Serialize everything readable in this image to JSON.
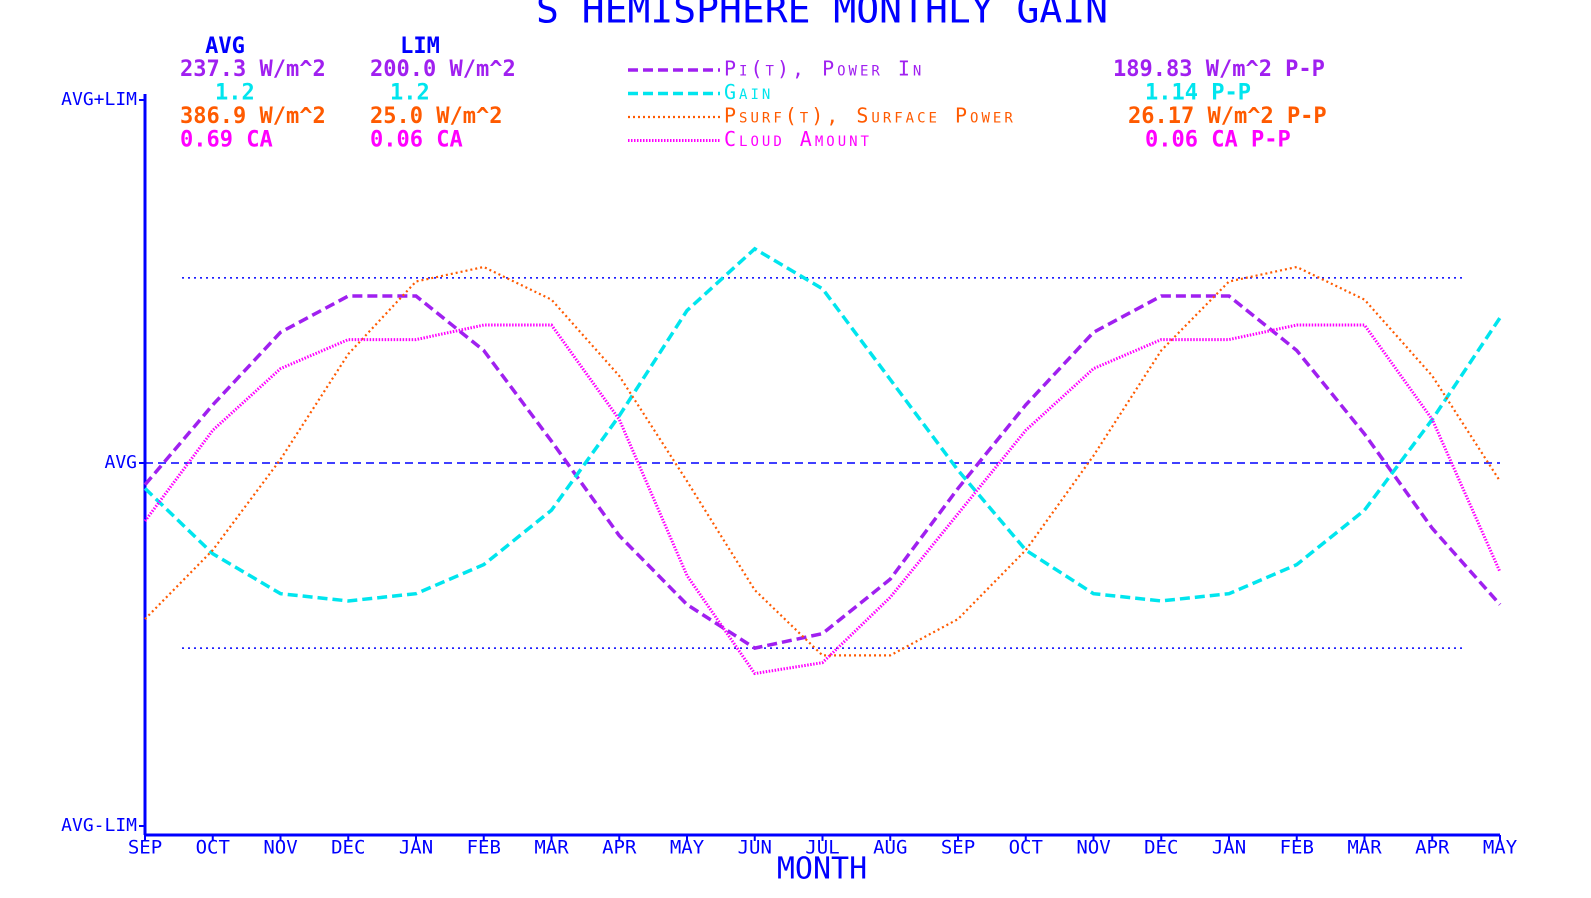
{
  "chart_data": {
    "type": "line",
    "title": "S HEMISPHERE MONTHLY GAIN",
    "x_label": "MONTH",
    "avg_heading": "AVG",
    "lim_heading": "LIM",
    "categories": [
      "SEP",
      "OCT",
      "NOV",
      "DEC",
      "JAN",
      "FEB",
      "MAR",
      "APR",
      "MAY",
      "JUN",
      "JUL",
      "AUG",
      "SEP",
      "OCT",
      "NOV",
      "DEC",
      "JAN",
      "FEB",
      "MAR",
      "APR",
      "MAY"
    ],
    "ylim": [
      -1,
      1
    ],
    "yticks": [
      {
        "value": 1,
        "label": "AVG+LIM"
      },
      {
        "value": 0,
        "label": "AVG"
      },
      {
        "value": -1,
        "label": "AVG-LIM"
      }
    ],
    "reference_lines": [
      {
        "value": 0.51,
        "style": "dotted"
      },
      {
        "value": 0,
        "style": "dashed"
      },
      {
        "value": -0.51,
        "style": "dotted"
      }
    ],
    "axis_color": "#0000ff",
    "series": [
      {
        "name": "Pi(t), Power In",
        "color": "#a020f0",
        "dash": "dashed",
        "avg_label": "237.3 W/m^2",
        "lim_label": "200.0 W/m^2",
        "pp_label": "189.83 W/m^2 P-P",
        "values": [
          -0.06,
          0.16,
          0.36,
          0.46,
          0.46,
          0.31,
          0.06,
          -0.2,
          -0.39,
          -0.51,
          -0.47,
          -0.32,
          -0.07,
          0.16,
          0.36,
          0.46,
          0.46,
          0.31,
          0.08,
          -0.18,
          -0.39
        ]
      },
      {
        "name": "Gain",
        "color": "#00e5ee",
        "dash": "dashed",
        "avg_label": "1.2",
        "lim_label": "1.2",
        "pp_label": "1.14  P-P",
        "values": [
          -0.07,
          -0.25,
          -0.36,
          -0.38,
          -0.36,
          -0.28,
          -0.13,
          0.13,
          0.42,
          0.59,
          0.48,
          0.23,
          -0.02,
          -0.24,
          -0.36,
          -0.38,
          -0.36,
          -0.28,
          -0.13,
          0.12,
          0.4
        ]
      },
      {
        "name": "Psurf(t), Surface Power",
        "color": "#ff5a00",
        "dash": "dotted",
        "avg_label": "386.9 W/m^2",
        "lim_label": "25.0 W/m^2",
        "pp_label": "26.17 W/m^2 P-P",
        "values": [
          -0.43,
          -0.24,
          0.01,
          0.3,
          0.5,
          0.54,
          0.45,
          0.24,
          -0.05,
          -0.35,
          -0.53,
          -0.53,
          -0.43,
          -0.24,
          0.02,
          0.31,
          0.5,
          0.54,
          0.45,
          0.24,
          -0.05
        ]
      },
      {
        "name": "Cloud Amount",
        "color": "#ff00ff",
        "dash": "fine",
        "avg_label": "0.69 CA",
        "lim_label": "0.06 CA",
        "pp_label": "0.06 CA P-P",
        "values": [
          -0.16,
          0.09,
          0.26,
          0.34,
          0.34,
          0.38,
          0.38,
          0.12,
          -0.31,
          -0.58,
          -0.55,
          -0.37,
          -0.14,
          0.09,
          0.26,
          0.34,
          0.34,
          0.38,
          0.38,
          0.12,
          -0.3
        ]
      }
    ]
  }
}
